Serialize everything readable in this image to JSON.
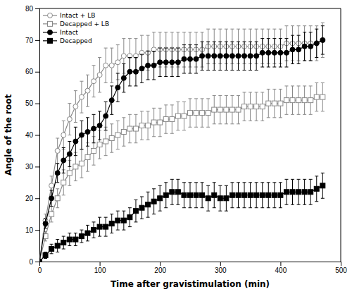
{
  "chart_data": {
    "type": "line",
    "xlabel": "Time after gravistimulation (min)",
    "ylabel": "Angle of the root",
    "xlim": [
      0,
      500
    ],
    "ylim": [
      0,
      80
    ],
    "xticks": [
      0,
      100,
      200,
      300,
      400,
      500
    ],
    "yticks": [
      0,
      10,
      20,
      30,
      40,
      50,
      60,
      70,
      80
    ],
    "grid": false,
    "legend": "upper left",
    "x": [
      0,
      10,
      20,
      30,
      40,
      50,
      60,
      70,
      80,
      90,
      100,
      110,
      120,
      130,
      140,
      150,
      160,
      170,
      180,
      190,
      200,
      210,
      220,
      230,
      240,
      250,
      260,
      270,
      280,
      290,
      300,
      310,
      320,
      330,
      340,
      350,
      360,
      370,
      380,
      390,
      400,
      410,
      420,
      430,
      440,
      450,
      460,
      470
    ],
    "series": [
      {
        "name": "Intact + LB",
        "color": "#888888",
        "marker": "circle-open",
        "values": [
          0,
          13,
          24,
          35,
          40,
          45,
          49,
          52,
          54,
          57,
          59,
          62,
          62,
          63,
          65,
          65,
          65,
          66,
          66,
          67,
          67,
          67,
          67,
          67,
          67,
          67,
          67,
          67,
          68,
          68,
          68,
          68,
          68,
          68,
          68,
          68,
          68,
          68,
          68,
          68,
          68,
          69,
          69,
          69,
          69,
          69,
          69,
          70
        ],
        "errors": [
          0,
          2,
          3,
          4,
          4.5,
          5,
          5,
          5,
          5,
          5,
          5.5,
          5.5,
          5.5,
          5.5,
          5.5,
          5.5,
          5.5,
          5.5,
          5.5,
          5.5,
          5.5,
          5.5,
          5.5,
          5.5,
          5.5,
          5.5,
          5.5,
          5.5,
          5.5,
          5.5,
          5.5,
          5.5,
          5.5,
          5.5,
          5.5,
          5.5,
          5.5,
          5.5,
          5.5,
          5.5,
          5.5,
          5.5,
          5.5,
          5.5,
          5.5,
          5.5,
          5.5,
          5.5
        ]
      },
      {
        "name": "Decapped + LB",
        "color": "#888888",
        "marker": "square-open",
        "values": [
          0,
          8,
          15,
          20,
          25,
          28,
          30,
          31,
          33,
          35,
          37,
          38,
          39,
          40,
          41,
          42,
          42,
          43,
          43,
          44,
          44,
          45,
          45,
          46,
          46,
          47,
          47,
          47,
          47,
          48,
          48,
          48,
          48,
          48,
          49,
          49,
          49,
          49,
          50,
          50,
          50,
          51,
          51,
          51,
          51,
          51,
          52,
          52
        ],
        "errors": [
          0,
          1.5,
          2.5,
          3,
          4,
          4,
          4.5,
          4.5,
          4.5,
          4.5,
          4.5,
          4.5,
          4.5,
          4.5,
          4.5,
          4.5,
          4.5,
          4.5,
          4.5,
          4.5,
          4.5,
          4.5,
          4.5,
          4.5,
          4.5,
          4.5,
          4.5,
          4.5,
          4.5,
          4.5,
          4.5,
          4.5,
          4.5,
          4.5,
          4.5,
          4.5,
          4.5,
          4.5,
          4.5,
          4.5,
          4.5,
          4.5,
          4.5,
          4.5,
          4.5,
          4.5,
          4.5,
          4.5
        ]
      },
      {
        "name": "Intact",
        "color": "#000000",
        "marker": "circle",
        "values": [
          0,
          12,
          20,
          28,
          32,
          34,
          38,
          40,
          41,
          42,
          43,
          46,
          51,
          55,
          58,
          60,
          60,
          61,
          62,
          62,
          63,
          63,
          63,
          63,
          64,
          64,
          64,
          65,
          65,
          65,
          65,
          65,
          65,
          65,
          65,
          65,
          65,
          66,
          66,
          66,
          66,
          66,
          67,
          67,
          68,
          68,
          69,
          70
        ],
        "errors": [
          0,
          1.5,
          2.5,
          3,
          4,
          4,
          4.5,
          4.5,
          4.5,
          4.5,
          4.5,
          4.5,
          4.5,
          4.5,
          4.5,
          4.5,
          4.5,
          4.5,
          4.5,
          4.5,
          4.5,
          4.5,
          4.5,
          4.5,
          4.5,
          4.5,
          4.5,
          4.5,
          4.5,
          4.5,
          4.5,
          4.5,
          4.5,
          4.5,
          4.5,
          4.5,
          4.5,
          4.5,
          4.5,
          4.5,
          4.5,
          4.5,
          4.5,
          4.5,
          4.5,
          4.5,
          4.5,
          4.5
        ]
      },
      {
        "name": "Decapped",
        "color": "#000000",
        "marker": "square",
        "values": [
          0,
          2,
          4,
          5,
          6,
          7,
          7,
          8,
          9,
          10,
          11,
          11,
          12,
          13,
          13,
          14,
          16,
          17,
          18,
          19,
          20,
          21,
          22,
          22,
          21,
          21,
          21,
          21,
          20,
          21,
          20,
          20,
          21,
          21,
          21,
          21,
          21,
          21,
          21,
          21,
          21,
          22,
          22,
          22,
          22,
          22,
          23,
          24
        ],
        "errors": [
          0,
          1,
          1.5,
          2,
          2,
          2,
          2,
          2,
          2.5,
          2.5,
          3,
          3,
          3,
          3,
          3,
          3,
          3.5,
          3.5,
          4,
          4,
          4,
          4,
          4,
          4,
          4,
          4,
          4,
          4,
          4,
          4,
          4,
          4,
          4,
          4,
          4,
          4,
          4,
          4,
          4,
          4,
          4,
          4,
          4,
          4,
          4,
          4,
          4,
          4
        ]
      }
    ]
  }
}
